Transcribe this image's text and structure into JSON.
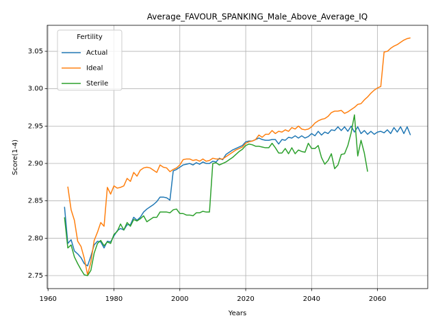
{
  "chart_data": {
    "type": "line",
    "title": "Average_FAVOUR_SPANKING_Male_Above_Average_IQ",
    "xlabel": "Years",
    "ylabel": "Score(1-4)",
    "legend_title": "Fertility",
    "legend_loc": "upper left",
    "grid": true,
    "xlim": [
      1959.75,
      2075.25
    ],
    "ylim": [
      2.7326,
      3.0848
    ],
    "xticks": [
      1960,
      1980,
      2000,
      2020,
      2040,
      2060
    ],
    "yticks": [
      2.75,
      {
        "value": 2.8,
        "label": "2.80"
      },
      2.85,
      {
        "value": 2.9,
        "label": "2.90"
      },
      2.95,
      {
        "value": 3.0,
        "label": "3.00"
      },
      3.05
    ],
    "x": [
      1965,
      1966,
      1967,
      1968,
      1969,
      1970,
      1971,
      1972,
      1973,
      1974,
      1975,
      1976,
      1977,
      1978,
      1979,
      1980,
      1981,
      1982,
      1983,
      1984,
      1985,
      1986,
      1987,
      1988,
      1989,
      1990,
      1991,
      1992,
      1993,
      1994,
      1995,
      1996,
      1997,
      1998,
      1999,
      2000,
      2001,
      2002,
      2003,
      2004,
      2005,
      2006,
      2007,
      2008,
      2009,
      2010,
      2011,
      2012,
      2013,
      2014,
      2015,
      2016,
      2017,
      2018,
      2019,
      2020,
      2021,
      2022,
      2023,
      2024,
      2025,
      2026,
      2027,
      2028,
      2029,
      2030,
      2031,
      2032,
      2033,
      2034,
      2035,
      2036,
      2037,
      2038,
      2039,
      2040,
      2041,
      2042,
      2043,
      2044,
      2045,
      2046,
      2047,
      2048,
      2049,
      2050,
      2051,
      2052,
      2053,
      2054,
      2055,
      2056,
      2057,
      2058,
      2059,
      2060,
      2061,
      2062,
      2063,
      2064,
      2065,
      2066,
      2067,
      2068,
      2069,
      2070
    ],
    "series": [
      {
        "name": "Actual",
        "color": "#1f77b4",
        "values": [
          2.842,
          2.793,
          2.798,
          2.783,
          2.779,
          2.774,
          2.766,
          2.763,
          2.776,
          2.791,
          2.796,
          2.795,
          2.787,
          2.796,
          2.795,
          2.803,
          2.81,
          2.813,
          2.811,
          2.818,
          2.818,
          2.828,
          2.824,
          2.828,
          2.835,
          2.839,
          2.842,
          2.845,
          2.849,
          2.855,
          2.855,
          2.854,
          2.851,
          2.89,
          2.892,
          2.895,
          2.898,
          2.899,
          2.9,
          2.898,
          2.901,
          2.899,
          2.902,
          2.9,
          2.9,
          2.903,
          2.902,
          2.907,
          2.905,
          2.912,
          2.915,
          2.918,
          2.92,
          2.922,
          2.924,
          2.929,
          2.93,
          2.93,
          2.932,
          2.934,
          2.932,
          2.931,
          2.931,
          2.932,
          2.932,
          2.926,
          2.932,
          2.931,
          2.935,
          2.934,
          2.937,
          2.934,
          2.937,
          2.934,
          2.936,
          2.94,
          2.937,
          2.943,
          2.938,
          2.942,
          2.94,
          2.945,
          2.944,
          2.949,
          2.944,
          2.949,
          2.943,
          2.95,
          2.942,
          2.949,
          2.94,
          2.944,
          2.939,
          2.943,
          2.939,
          2.942,
          2.943,
          2.941,
          2.945,
          2.94,
          2.948,
          2.942,
          2.949,
          2.94,
          2.949,
          2.938
        ]
      },
      {
        "name": "Ideal",
        "color": "#ff7f0e",
        "values": [
          null,
          2.869,
          2.838,
          2.824,
          2.796,
          2.789,
          2.773,
          2.751,
          2.768,
          2.797,
          2.808,
          2.821,
          2.816,
          2.868,
          2.859,
          2.87,
          2.867,
          2.868,
          2.87,
          2.88,
          2.876,
          2.888,
          2.883,
          2.891,
          2.894,
          2.895,
          2.894,
          2.891,
          2.888,
          2.898,
          2.895,
          2.894,
          2.889,
          2.892,
          2.894,
          2.898,
          2.905,
          2.906,
          2.906,
          2.904,
          2.905,
          2.903,
          2.906,
          2.903,
          2.904,
          2.907,
          2.906,
          2.906,
          2.906,
          2.909,
          2.912,
          2.915,
          2.918,
          2.92,
          2.922,
          2.927,
          2.929,
          2.93,
          2.932,
          2.938,
          2.935,
          2.939,
          2.939,
          2.944,
          2.94,
          2.943,
          2.942,
          2.945,
          2.943,
          2.948,
          2.946,
          2.95,
          2.946,
          2.945,
          2.946,
          2.949,
          2.954,
          2.957,
          2.959,
          2.96,
          2.963,
          2.968,
          2.97,
          2.97,
          2.971,
          2.967,
          2.969,
          2.972,
          2.975,
          2.979,
          2.98,
          2.985,
          2.989,
          2.994,
          2.998,
          3.001,
          3.003,
          3.049,
          3.05,
          3.054,
          3.057,
          3.059,
          3.062,
          3.065,
          3.067,
          3.068
        ]
      },
      {
        "name": "Sterile",
        "color": "#2ca02c",
        "values": [
          2.828,
          2.787,
          2.791,
          2.775,
          2.766,
          2.758,
          2.751,
          2.75,
          2.757,
          2.78,
          2.793,
          2.797,
          2.79,
          2.795,
          2.793,
          2.805,
          2.809,
          2.819,
          2.811,
          2.821,
          2.816,
          2.825,
          2.823,
          2.826,
          2.83,
          2.822,
          2.825,
          2.828,
          2.828,
          2.835,
          2.835,
          2.835,
          2.834,
          2.838,
          2.839,
          2.833,
          2.833,
          2.831,
          2.831,
          2.83,
          2.834,
          2.834,
          2.836,
          2.835,
          2.835,
          2.9,
          2.901,
          2.898,
          2.9,
          2.902,
          2.905,
          2.908,
          2.912,
          2.916,
          2.919,
          2.924,
          2.926,
          2.925,
          2.923,
          2.923,
          2.922,
          2.921,
          2.921,
          2.927,
          2.921,
          2.914,
          2.914,
          2.92,
          2.913,
          2.921,
          2.913,
          2.918,
          2.916,
          2.915,
          2.927,
          2.92,
          2.92,
          2.924,
          2.908,
          2.899,
          2.904,
          2.913,
          2.893,
          2.898,
          2.912,
          2.913,
          2.924,
          2.941,
          2.965,
          2.91,
          2.931,
          2.914,
          2.889,
          null,
          null,
          null,
          null,
          null,
          null,
          null,
          null,
          null,
          null,
          null,
          null,
          null
        ]
      }
    ]
  }
}
